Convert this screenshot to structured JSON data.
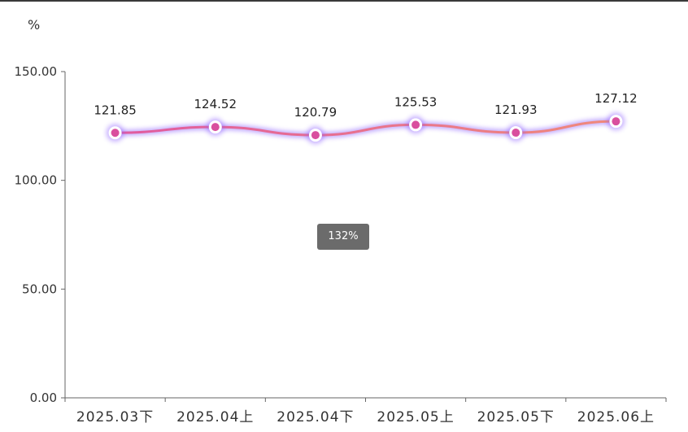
{
  "chart_data": {
    "type": "line",
    "ylabel": "%",
    "ylim": [
      0,
      150
    ],
    "yticks": [
      "0.00",
      "50.00",
      "100.00",
      "150.00"
    ],
    "categories": [
      "2025.03下",
      "2025.04上",
      "2025.04下",
      "2025.05上",
      "2025.05下",
      "2025.06上"
    ],
    "series": [
      {
        "values": [
          121.85,
          124.52,
          120.79,
          125.53,
          121.93,
          127.12
        ]
      }
    ],
    "data_labels": [
      "121.85",
      "124.52",
      "120.79",
      "125.53",
      "121.93",
      "127.12"
    ],
    "grid": false,
    "line_gradient": [
      "#e05aa0",
      "#f08a7a"
    ],
    "marker_color": "#d94f9e",
    "glow_color": "#8a5cff"
  },
  "zoom": {
    "label": "132%"
  }
}
